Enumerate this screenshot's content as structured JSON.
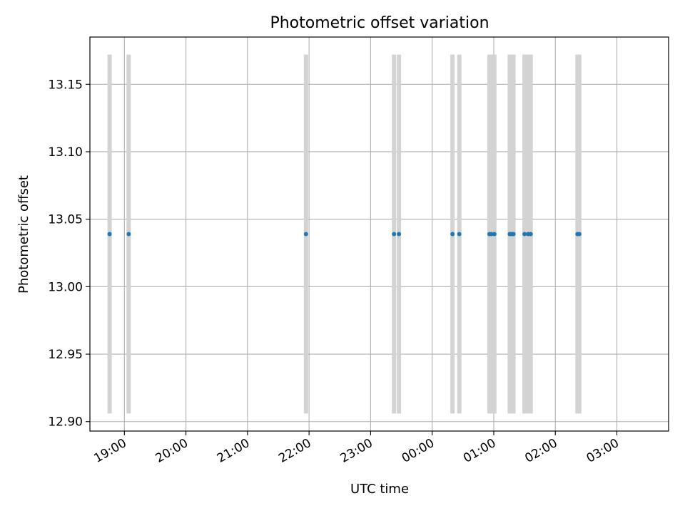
{
  "chart_data": {
    "type": "scatter",
    "title": "Photometric offset variation",
    "xlabel": "UTC time",
    "ylabel": "Photometric offset",
    "grid": true,
    "legend": "none",
    "x_unit": "hours",
    "xlim": [
      18.44,
      27.84
    ],
    "ylim": [
      12.893,
      13.185
    ],
    "x_ticks": [
      {
        "value": 19,
        "label": "19:00"
      },
      {
        "value": 20,
        "label": "20:00"
      },
      {
        "value": 21,
        "label": "21:00"
      },
      {
        "value": 22,
        "label": "22:00"
      },
      {
        "value": 23,
        "label": "23:00"
      },
      {
        "value": 24,
        "label": "00:00"
      },
      {
        "value": 25,
        "label": "01:00"
      },
      {
        "value": 26,
        "label": "02:00"
      },
      {
        "value": 27,
        "label": "03:00"
      }
    ],
    "y_ticks": [
      {
        "value": 12.9,
        "label": "12.90"
      },
      {
        "value": 12.95,
        "label": "12.95"
      },
      {
        "value": 13.0,
        "label": "13.00"
      },
      {
        "value": 13.05,
        "label": "13.05"
      },
      {
        "value": 13.1,
        "label": "13.10"
      },
      {
        "value": 13.15,
        "label": "13.15"
      }
    ],
    "band_range": [
      12.906,
      13.172
    ],
    "band_color": "#d3d3d3",
    "point_color": "#1f77b4",
    "grid_color": "#b0b0b0",
    "points": [
      {
        "x": 18.76,
        "y": 13.039
      },
      {
        "x": 19.07,
        "y": 13.039
      },
      {
        "x": 21.95,
        "y": 13.039
      },
      {
        "x": 23.38,
        "y": 13.039
      },
      {
        "x": 23.46,
        "y": 13.039
      },
      {
        "x": 24.33,
        "y": 13.039
      },
      {
        "x": 24.44,
        "y": 13.039
      },
      {
        "x": 24.93,
        "y": 13.039
      },
      {
        "x": 24.96,
        "y": 13.039
      },
      {
        "x": 25.01,
        "y": 13.039
      },
      {
        "x": 25.26,
        "y": 13.039
      },
      {
        "x": 25.29,
        "y": 13.039
      },
      {
        "x": 25.32,
        "y": 13.039
      },
      {
        "x": 25.5,
        "y": 13.039
      },
      {
        "x": 25.56,
        "y": 13.039
      },
      {
        "x": 25.6,
        "y": 13.039
      },
      {
        "x": 26.36,
        "y": 13.039
      },
      {
        "x": 26.39,
        "y": 13.039
      }
    ]
  }
}
